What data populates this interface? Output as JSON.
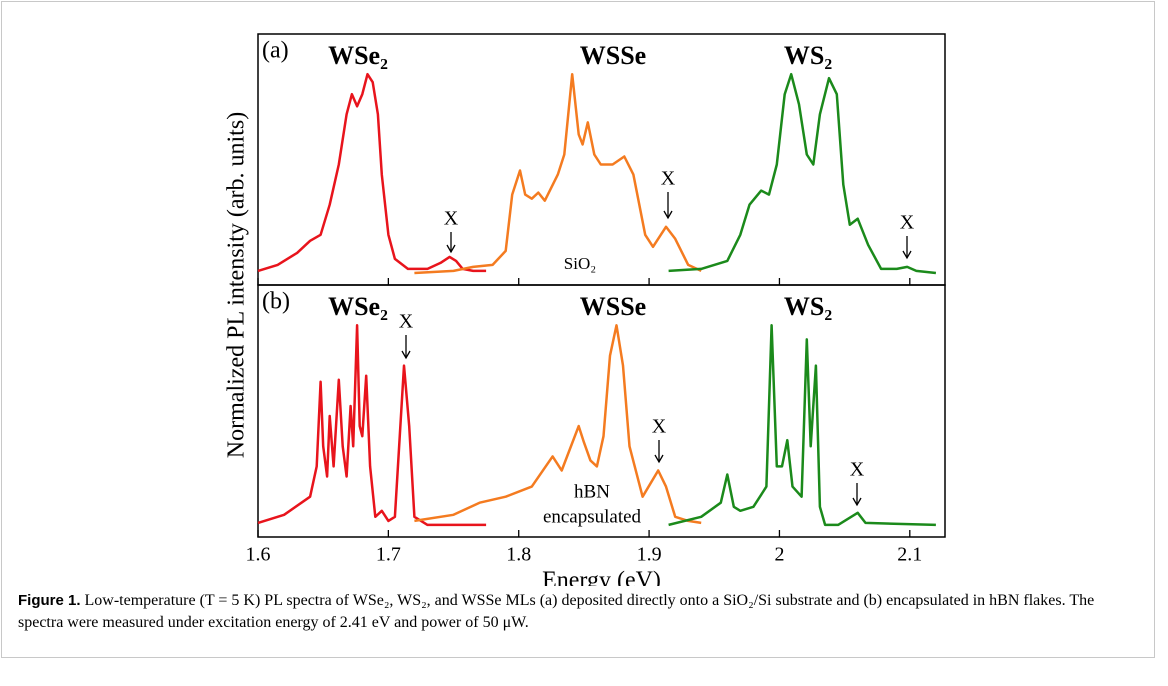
{
  "chart_data": [
    {
      "type": "line",
      "panel_label": "(a)",
      "note": "SiO₂",
      "ylabel": "Normalized PL intensity (arb. units)",
      "xlim": [
        1.6,
        2.127
      ],
      "ylim": [
        -0.05,
        1.2
      ],
      "annotations": [
        "X",
        "X",
        "X"
      ],
      "series": [
        {
          "name": "WSe₂",
          "color": "#e8141c",
          "x": [
            1.6,
            1.615,
            1.63,
            1.64,
            1.648,
            1.655,
            1.662,
            1.668,
            1.672,
            1.676,
            1.68,
            1.684,
            1.688,
            1.692,
            1.695,
            1.7,
            1.705,
            1.715,
            1.73,
            1.74,
            1.747,
            1.752,
            1.757,
            1.765,
            1.775
          ],
          "values": [
            0.02,
            0.05,
            0.11,
            0.17,
            0.2,
            0.35,
            0.55,
            0.8,
            0.9,
            0.84,
            0.9,
            1.0,
            0.96,
            0.8,
            0.5,
            0.2,
            0.08,
            0.03,
            0.03,
            0.06,
            0.09,
            0.07,
            0.03,
            0.02,
            0.02
          ]
        },
        {
          "name": "WSSe",
          "color": "#f47b20",
          "x": [
            1.72,
            1.75,
            1.765,
            1.78,
            1.79,
            1.795,
            1.801,
            1.805,
            1.81,
            1.815,
            1.82,
            1.83,
            1.835,
            1.841,
            1.846,
            1.849,
            1.853,
            1.858,
            1.863,
            1.872,
            1.881,
            1.888,
            1.897,
            1.903,
            1.913,
            1.92,
            1.93,
            1.94
          ],
          "values": [
            0.01,
            0.02,
            0.04,
            0.05,
            0.12,
            0.4,
            0.52,
            0.4,
            0.38,
            0.41,
            0.37,
            0.5,
            0.6,
            1.0,
            0.7,
            0.65,
            0.76,
            0.6,
            0.55,
            0.55,
            0.59,
            0.5,
            0.2,
            0.14,
            0.24,
            0.18,
            0.05,
            0.02
          ]
        },
        {
          "name": "WS₂",
          "color": "#1b8a1b",
          "x": [
            1.915,
            1.94,
            1.96,
            1.97,
            1.977,
            1.986,
            1.992,
            1.998,
            2.004,
            2.009,
            2.015,
            2.021,
            2.026,
            2.031,
            2.038,
            2.044,
            2.049,
            2.054,
            2.06,
            2.068,
            2.078,
            2.09,
            2.098,
            2.105,
            2.12
          ],
          "values": [
            0.02,
            0.03,
            0.07,
            0.2,
            0.35,
            0.42,
            0.4,
            0.55,
            0.9,
            1.0,
            0.85,
            0.6,
            0.55,
            0.8,
            0.98,
            0.9,
            0.45,
            0.25,
            0.28,
            0.15,
            0.03,
            0.03,
            0.04,
            0.02,
            0.01
          ]
        }
      ]
    },
    {
      "type": "line",
      "panel_label": "(b)",
      "note": [
        "hBN",
        "encapsulated"
      ],
      "xlabel": "Energy (eV)",
      "xlim": [
        1.6,
        2.127
      ],
      "ylim": [
        -0.05,
        1.2
      ],
      "xticks": [
        1.6,
        1.7,
        1.8,
        1.9,
        2.0,
        2.1
      ],
      "annotations": [
        "X",
        "X",
        "X"
      ],
      "series": [
        {
          "name": "WSe₂",
          "color": "#e8141c",
          "x": [
            1.6,
            1.62,
            1.64,
            1.645,
            1.648,
            1.65,
            1.653,
            1.655,
            1.658,
            1.662,
            1.665,
            1.668,
            1.671,
            1.673,
            1.676,
            1.678,
            1.68,
            1.683,
            1.686,
            1.69,
            1.695,
            1.7,
            1.705,
            1.712,
            1.716,
            1.72,
            1.73,
            1.775
          ],
          "values": [
            0.02,
            0.06,
            0.15,
            0.3,
            0.72,
            0.4,
            0.25,
            0.55,
            0.3,
            0.73,
            0.4,
            0.25,
            0.6,
            0.4,
            1.0,
            0.5,
            0.45,
            0.75,
            0.3,
            0.05,
            0.08,
            0.03,
            0.05,
            0.8,
            0.5,
            0.05,
            0.01,
            0.01
          ]
        },
        {
          "name": "WSSe",
          "color": "#f47b20",
          "x": [
            1.72,
            1.75,
            1.77,
            1.79,
            1.81,
            1.826,
            1.833,
            1.846,
            1.85,
            1.855,
            1.86,
            1.865,
            1.87,
            1.875,
            1.88,
            1.885,
            1.895,
            1.907,
            1.913,
            1.92,
            1.93,
            1.94
          ],
          "values": [
            0.03,
            0.06,
            0.12,
            0.15,
            0.2,
            0.35,
            0.28,
            0.5,
            0.42,
            0.33,
            0.3,
            0.45,
            0.85,
            1.0,
            0.8,
            0.4,
            0.15,
            0.28,
            0.2,
            0.05,
            0.03,
            0.02
          ]
        },
        {
          "name": "WS₂",
          "color": "#1b8a1b",
          "x": [
            1.915,
            1.94,
            1.955,
            1.96,
            1.965,
            1.97,
            1.98,
            1.99,
            1.994,
            1.998,
            2.002,
            2.006,
            2.01,
            2.017,
            2.021,
            2.024,
            2.028,
            2.031,
            2.035,
            2.045,
            2.06,
            2.066,
            2.12
          ],
          "values": [
            0.01,
            0.05,
            0.12,
            0.26,
            0.1,
            0.08,
            0.1,
            0.2,
            1.0,
            0.3,
            0.3,
            0.43,
            0.2,
            0.15,
            0.93,
            0.4,
            0.8,
            0.1,
            0.01,
            0.01,
            0.07,
            0.02,
            0.01
          ]
        }
      ]
    }
  ],
  "caption": {
    "label": "Figure 1.",
    "text": "Low-temperature (T = 5 K) PL spectra of WSe₂, WS₂, and WSSe MLs (a) deposited directly onto a SiO₂/Si substrate and (b) encapsulated in hBN flakes. The spectra were measured under excitation energy of 2.41 eV and power of 50 μW."
  }
}
